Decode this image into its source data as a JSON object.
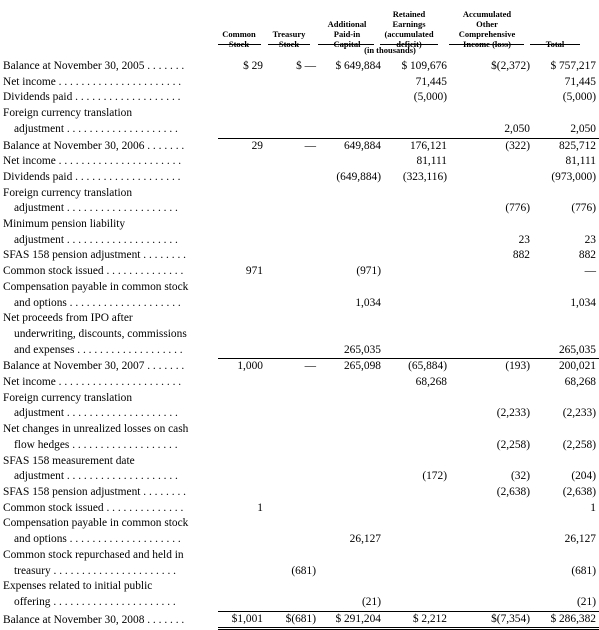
{
  "headers": {
    "common_stock": [
      "Common",
      "Stock"
    ],
    "treasury_stock": [
      "Treasury",
      "Stock"
    ],
    "apic": [
      "Additional",
      "Paid-in",
      "Capital"
    ],
    "retained": [
      "Retained",
      "Earnings",
      "(accumulated",
      "deficit)"
    ],
    "aoci": [
      "Accumulated",
      "Other",
      "Comprehensive",
      "Income (loss)"
    ],
    "total": [
      "Total"
    ],
    "units": "(in thousands)"
  },
  "rows": [
    {
      "label": "Balance at November 30, 2005 . . . . . . .",
      "cells": [
        "$   29",
        "$ —",
        "$ 649,884",
        "$ 109,676",
        "$(2,372)",
        "$ 757,217"
      ]
    },
    {
      "label": "Net income . . . . . . . . . . . . . . . . . . . . . .",
      "cells": [
        "",
        "",
        "",
        "71,445",
        "",
        "71,445"
      ]
    },
    {
      "label": "Dividends paid . . . . . . . . . . . . . . . . . . .",
      "cells": [
        "",
        "",
        "",
        "(5,000)",
        "",
        "(5,000)"
      ]
    },
    {
      "label": "Foreign currency translation",
      "cells": [
        "",
        "",
        "",
        "",
        "",
        ""
      ]
    },
    {
      "label": "adjustment . . . . . . . . . . . . . . . . . . . .",
      "indent": true,
      "cells": [
        "",
        "",
        "",
        "",
        "2,050",
        "2,050"
      ]
    },
    {
      "label": "Balance at November 30, 2006 . . . . . . .",
      "top": true,
      "cells": [
        "29",
        "—",
        "649,884",
        "176,121",
        "(322)",
        "825,712"
      ]
    },
    {
      "label": "Net income . . . . . . . . . . . . . . . . . . . . . .",
      "cells": [
        "",
        "",
        "",
        "81,111",
        "",
        "81,111"
      ]
    },
    {
      "label": "Dividends paid . . . . . . . . . . . . . . . . . . .",
      "cells": [
        "",
        "",
        "(649,884)",
        "(323,116)",
        "",
        "(973,000)"
      ]
    },
    {
      "label": "Foreign currency translation",
      "cells": [
        "",
        "",
        "",
        "",
        "",
        ""
      ]
    },
    {
      "label": "adjustment . . . . . . . . . . . . . . . . . . . .",
      "indent": true,
      "cells": [
        "",
        "",
        "",
        "",
        "(776)",
        "(776)"
      ]
    },
    {
      "label": "Minimum pension liability",
      "cells": [
        "",
        "",
        "",
        "",
        "",
        ""
      ]
    },
    {
      "label": "adjustment . . . . . . . . . . . . . . . . . . . .",
      "indent": true,
      "cells": [
        "",
        "",
        "",
        "",
        "23",
        "23"
      ]
    },
    {
      "label": "SFAS 158 pension adjustment . . . . . . . .",
      "cells": [
        "",
        "",
        "",
        "",
        "882",
        "882"
      ]
    },
    {
      "label": "Common stock issued . . . . . . . . . . . . . .",
      "cells": [
        "971",
        "",
        "(971)",
        "",
        "",
        "—"
      ]
    },
    {
      "label": "Compensation payable in common stock",
      "cells": [
        "",
        "",
        "",
        "",
        "",
        ""
      ]
    },
    {
      "label": "and options . . . . . . . . . . . . . . . . . . . .",
      "indent": true,
      "cells": [
        "",
        "",
        "1,034",
        "",
        "",
        "1,034"
      ]
    },
    {
      "label": "Net proceeds from IPO after",
      "cells": [
        "",
        "",
        "",
        "",
        "",
        ""
      ]
    },
    {
      "label": "underwriting, discounts, commissions",
      "indent": true,
      "cells": [
        "",
        "",
        "",
        "",
        "",
        ""
      ]
    },
    {
      "label": "and expenses . . . . . . . . . . . . . . . . . . .",
      "indent": true,
      "cells": [
        "",
        "",
        "265,035",
        "",
        "",
        "265,035"
      ]
    },
    {
      "label": "Balance at November 30, 2007 . . . . . . .",
      "top": true,
      "cells": [
        "1,000",
        "—",
        "265,098",
        "(65,884)",
        "(193)",
        "200,021"
      ]
    },
    {
      "label": "Net income . . . . . . . . . . . . . . . . . . . . . .",
      "cells": [
        "",
        "",
        "",
        "68,268",
        "",
        "68,268"
      ]
    },
    {
      "label": "Foreign currency translation",
      "cells": [
        "",
        "",
        "",
        "",
        "",
        ""
      ]
    },
    {
      "label": "adjustment . . . . . . . . . . . . . . . . . . . .",
      "indent": true,
      "cells": [
        "",
        "",
        "",
        "",
        "(2,233)",
        "(2,233)"
      ]
    },
    {
      "label": "Net changes in unrealized losses on cash",
      "cells": [
        "",
        "",
        "",
        "",
        "",
        ""
      ]
    },
    {
      "label": "flow hedges . . . . . . . . . . . . . . . . . . .",
      "indent": true,
      "cells": [
        "",
        "",
        "",
        "",
        "(2,258)",
        "(2,258)"
      ]
    },
    {
      "label": "SFAS 158 measurement date",
      "cells": [
        "",
        "",
        "",
        "",
        "",
        ""
      ]
    },
    {
      "label": "adjustment . . . . . . . . . . . . . . . . . . . .",
      "indent": true,
      "cells": [
        "",
        "",
        "",
        "(172)",
        "(32)",
        "(204)"
      ]
    },
    {
      "label": "SFAS 158 pension adjustment . . . . . . . .",
      "cells": [
        "",
        "",
        "",
        "",
        "(2,638)",
        "(2,638)"
      ]
    },
    {
      "label": "Common stock issued . . . . . . . . . . . . . .",
      "cells": [
        "1",
        "",
        "",
        "",
        "",
        "1"
      ]
    },
    {
      "label": "Compensation payable in common stock",
      "cells": [
        "",
        "",
        "",
        "",
        "",
        ""
      ]
    },
    {
      "label": "and options . . . . . . . . . . . . . . . . . . . .",
      "indent": true,
      "cells": [
        "",
        "",
        "26,127",
        "",
        "",
        "26,127"
      ]
    },
    {
      "label": "Common stock repurchased and held in",
      "cells": [
        "",
        "",
        "",
        "",
        "",
        ""
      ]
    },
    {
      "label": "treasury . . . . . . . . . . . . . . . . . . . . . .",
      "indent": true,
      "cells": [
        "",
        "(681)",
        "",
        "",
        "",
        "(681)"
      ]
    },
    {
      "label": "Expenses related to initial public",
      "cells": [
        "",
        "",
        "",
        "",
        "",
        ""
      ]
    },
    {
      "label": "offering . . . . . . . . . . . . . . . . . . . . . .",
      "indent": true,
      "cells": [
        "",
        "",
        "(21)",
        "",
        "",
        "(21)"
      ]
    },
    {
      "label": "Balance at November 30, 2008 . . . . . . .",
      "top": true,
      "final": true,
      "cells": [
        "$1,001",
        "$(681)",
        "$ 291,204",
        "$     2,212",
        "$(7,354)",
        "$ 286,382"
      ]
    }
  ]
}
